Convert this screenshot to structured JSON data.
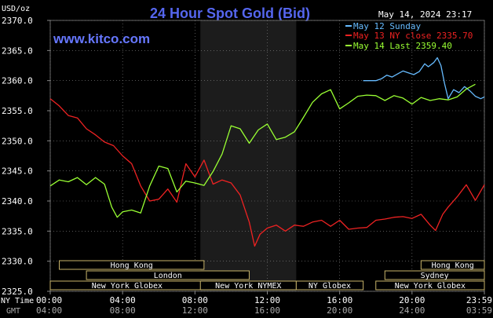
{
  "chart_data": {
    "type": "line",
    "title": "24 Hour Spot Gold (Bid)",
    "website": "www.kitco.com",
    "timestamp": "May 14, 2024 23:17",
    "ylabel": "USD/oz",
    "ylim": [
      2325.0,
      2370.0
    ],
    "y_ticks": [
      "2370.0",
      "2365.0",
      "2360.0",
      "2355.0",
      "2350.0",
      "2345.0",
      "2340.0",
      "2335.0",
      "2330.0",
      "2325.0"
    ],
    "x_row_labels": {
      "ny": "NY Time",
      "gmt": "GMT"
    },
    "x_ticks": [
      {
        "ny": "00:00",
        "gmt": "04:00",
        "t": 0
      },
      {
        "ny": "04:00",
        "gmt": "08:00",
        "t": 4
      },
      {
        "ny": "08:00",
        "gmt": "12:00",
        "t": 8
      },
      {
        "ny": "12:00",
        "gmt": "16:00",
        "t": 12
      },
      {
        "ny": "16:00",
        "gmt": "20:00",
        "t": 16
      },
      {
        "ny": "20:00",
        "gmt": "24:00",
        "t": 20
      },
      {
        "ny": "23:59",
        "gmt": "03:59",
        "t": 24
      }
    ],
    "shaded_region": [
      8.3,
      13.6
    ],
    "legend": [
      {
        "label": "May 12 Sunday",
        "color": "#66bbff"
      },
      {
        "label": "May 13 NY close 2335.70",
        "color": "#ee2222"
      },
      {
        "label": "May 14 Last 2359.40",
        "color": "#99ff33"
      }
    ],
    "series": [
      {
        "name": "May 12 Sunday",
        "color": "#66bbff",
        "x": [
          17.3,
          18.0,
          18.3,
          18.6,
          18.9,
          19.2,
          19.5,
          19.8,
          20.1,
          20.4,
          20.7,
          20.9,
          21.2,
          21.4,
          21.6,
          21.8,
          22.0,
          22.3,
          22.6,
          22.9,
          23.2,
          23.5,
          23.8,
          24.0
        ],
        "y": [
          2360.0,
          2360.0,
          2360.3,
          2360.9,
          2360.6,
          2361.1,
          2361.6,
          2361.3,
          2361.0,
          2361.5,
          2362.8,
          2362.3,
          2363.0,
          2363.8,
          2362.5,
          2359.5,
          2357.0,
          2358.5,
          2358.0,
          2359.0,
          2358.3,
          2357.4,
          2357.0,
          2357.3
        ]
      },
      {
        "name": "May 13 NY close 2335.70",
        "color": "#ee2222",
        "x": [
          0.0,
          0.5,
          1.0,
          1.5,
          2.0,
          2.5,
          3.0,
          3.5,
          4.0,
          4.5,
          5.0,
          5.5,
          6.0,
          6.5,
          7.0,
          7.5,
          8.0,
          8.5,
          9.0,
          9.5,
          10.0,
          10.5,
          11.0,
          11.3,
          11.6,
          12.0,
          12.5,
          13.0,
          13.5,
          14.0,
          14.5,
          15.0,
          15.5,
          16.0,
          16.5,
          17.0,
          17.5,
          18.0,
          18.5,
          19.0,
          19.5,
          20.0,
          20.5,
          21.0,
          21.3,
          21.7,
          22.0,
          22.5,
          23.0,
          23.5,
          24.0
        ],
        "y": [
          2357.0,
          2355.8,
          2354.2,
          2353.8,
          2352.0,
          2351.0,
          2349.8,
          2349.2,
          2347.5,
          2346.2,
          2342.5,
          2340.0,
          2340.3,
          2342.0,
          2339.8,
          2346.2,
          2344.0,
          2346.8,
          2342.8,
          2343.5,
          2343.0,
          2341.0,
          2336.5,
          2332.5,
          2334.5,
          2335.5,
          2336.0,
          2335.0,
          2336.0,
          2335.8,
          2336.5,
          2336.8,
          2335.8,
          2336.8,
          2335.3,
          2335.5,
          2335.6,
          2336.8,
          2337.0,
          2337.3,
          2337.4,
          2337.1,
          2337.8,
          2336.0,
          2335.1,
          2337.8,
          2339.0,
          2340.7,
          2342.7,
          2340.1,
          2342.7
        ]
      },
      {
        "name": "May 14 Last 2359.40",
        "color": "#99ff33",
        "x": [
          0.0,
          0.5,
          1.0,
          1.5,
          2.0,
          2.5,
          3.0,
          3.4,
          3.7,
          4.0,
          4.5,
          5.0,
          5.5,
          6.0,
          6.5,
          7.0,
          7.5,
          8.0,
          8.5,
          9.0,
          9.5,
          10.0,
          10.5,
          11.0,
          11.5,
          12.0,
          12.5,
          13.0,
          13.5,
          14.0,
          14.5,
          15.0,
          15.5,
          16.0,
          16.5,
          17.0,
          17.5,
          18.0,
          18.5,
          19.0,
          19.5,
          20.0,
          20.5,
          21.0,
          21.5,
          22.0,
          22.5,
          23.0,
          23.5
        ],
        "y": [
          2342.5,
          2343.5,
          2343.2,
          2343.9,
          2342.7,
          2343.9,
          2342.8,
          2339.0,
          2337.3,
          2338.2,
          2338.5,
          2338.0,
          2342.5,
          2345.8,
          2345.4,
          2341.5,
          2343.3,
          2343.0,
          2342.6,
          2344.9,
          2347.8,
          2352.5,
          2352.0,
          2349.6,
          2351.8,
          2352.8,
          2350.2,
          2350.6,
          2351.5,
          2353.9,
          2356.4,
          2357.8,
          2358.5,
          2355.3,
          2356.3,
          2357.4,
          2357.6,
          2357.5,
          2356.7,
          2357.5,
          2357.1,
          2356.1,
          2357.2,
          2356.7,
          2357.0,
          2356.8,
          2357.3,
          2358.6,
          2359.4
        ]
      }
    ],
    "sessions": [
      {
        "label": "Hong Kong",
        "start": 0.5,
        "end": 8.5
      },
      {
        "label": "London",
        "start": 2.0,
        "end": 11.0
      },
      {
        "label": "New York Globex",
        "start": 0.0,
        "end": 8.5
      },
      {
        "label": "New York NYMEX",
        "start": 8.3,
        "end": 13.6
      },
      {
        "label": "NY Globex",
        "start": 13.6,
        "end": 17.3
      },
      {
        "label": "Hong Kong",
        "start": 20.5,
        "end": 24.0
      },
      {
        "label": "Sydney",
        "start": 18.5,
        "end": 24.0
      },
      {
        "label": "New York Globex",
        "start": 18.0,
        "end": 24.0
      }
    ]
  }
}
